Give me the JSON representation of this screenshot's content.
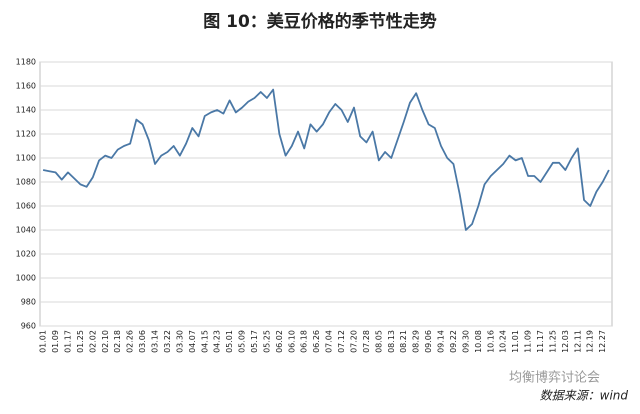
{
  "chart_data": {
    "type": "line",
    "title": "图 10：美豆价格的季节性走势",
    "source": "数据来源：wind",
    "watermark": "均衡博弈讨论会",
    "categories": [
      "01.01",
      null,
      "01.09",
      null,
      "01.17",
      null,
      "01.25",
      null,
      "02.02",
      null,
      "02.10",
      null,
      "02.18",
      null,
      "02.26",
      null,
      "03.06",
      null,
      "03.14",
      null,
      "03.22",
      null,
      "03.30",
      null,
      "04.07",
      null,
      "04.15",
      null,
      "04.23",
      null,
      "05.01",
      null,
      "05.09",
      null,
      "05.17",
      null,
      "05.25",
      null,
      "06.02",
      null,
      "06.10",
      null,
      "06.18",
      null,
      "06.26",
      null,
      "07.04",
      null,
      "07.12",
      null,
      "07.20",
      null,
      "07.28",
      null,
      "08.05",
      null,
      "08.13",
      null,
      "08.21",
      null,
      "08.29",
      null,
      "09.06",
      null,
      "09.14",
      null,
      "09.22",
      null,
      "09.30",
      null,
      "10.08",
      null,
      "10.16",
      null,
      "10.24",
      null,
      "11.01",
      null,
      "11.09",
      null,
      "11.17",
      null,
      "11.25",
      null,
      "12.03",
      null,
      "12.11",
      null,
      "12.19",
      null,
      "12.27",
      null
    ],
    "values": [
      1090,
      1089,
      1088,
      1082,
      1088,
      1083,
      1078,
      1076,
      1084,
      1098,
      1102,
      1100,
      1107,
      1110,
      1112,
      1132,
      1128,
      1115,
      1095,
      1102,
      1105,
      1110,
      1102,
      1112,
      1125,
      1118,
      1135,
      1138,
      1140,
      1137,
      1148,
      1138,
      1142,
      1147,
      1150,
      1155,
      1150,
      1157,
      1120,
      1102,
      1110,
      1122,
      1108,
      1128,
      1122,
      1128,
      1138,
      1145,
      1140,
      1130,
      1142,
      1118,
      1113,
      1122,
      1098,
      1105,
      1100,
      1115,
      1130,
      1146,
      1154,
      1140,
      1128,
      1125,
      1110,
      1100,
      1095,
      1070,
      1040,
      1045,
      1060,
      1078,
      1085,
      1090,
      1095,
      1102,
      1098,
      1100,
      1085,
      1085,
      1080,
      1088,
      1096,
      1096,
      1090,
      1100,
      1108,
      1065,
      1060,
      1072,
      1080,
      1090
    ],
    "color": "#4a78a6",
    "ylim": [
      960,
      1180
    ],
    "yticks": [
      960,
      980,
      1000,
      1020,
      1040,
      1060,
      1080,
      1100,
      1120,
      1140,
      1160,
      1180
    ],
    "grid": true
  }
}
